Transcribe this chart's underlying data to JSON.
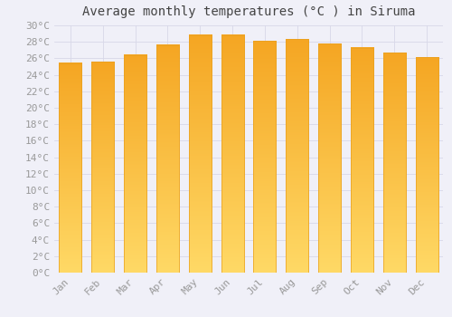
{
  "title": "Average monthly temperatures (°C ) in Siruma",
  "months": [
    "Jan",
    "Feb",
    "Mar",
    "Apr",
    "May",
    "Jun",
    "Jul",
    "Aug",
    "Sep",
    "Oct",
    "Nov",
    "Dec"
  ],
  "values": [
    25.4,
    25.6,
    26.4,
    27.6,
    28.8,
    28.8,
    28.1,
    28.3,
    27.8,
    27.3,
    26.7,
    26.1
  ],
  "bar_color_top": "#F5A623",
  "bar_color_bottom": "#FFD966",
  "bar_edge_color": "#E8A020",
  "background_color": "#F0F0F8",
  "grid_color": "#D8D8E8",
  "ylim": [
    0,
    30
  ],
  "ytick_step": 2,
  "title_fontsize": 10,
  "tick_fontsize": 8,
  "font_family": "monospace"
}
